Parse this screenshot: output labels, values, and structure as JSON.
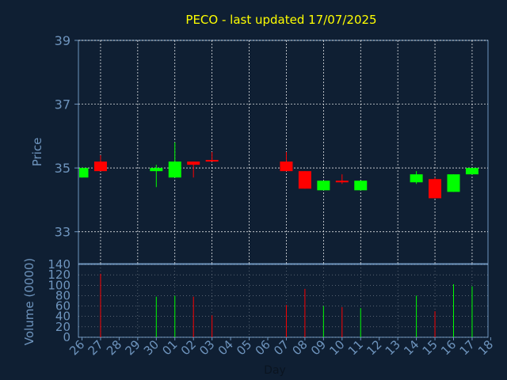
{
  "chart_data": {
    "type": "candlestick",
    "title": "PECO - last updated 17/07/2025",
    "xlabel": "Day",
    "price_panel": {
      "ylabel": "Price",
      "ylim": [
        32,
        39
      ],
      "yticks": [
        "33",
        "35",
        "37",
        "39"
      ],
      "grid": true
    },
    "volume_panel": {
      "ylabel": "Volume (0000)",
      "ylim": [
        0,
        140
      ],
      "yticks": [
        "0",
        "20",
        "40",
        "60",
        "80",
        "100",
        "120",
        "140"
      ]
    },
    "x_ticks": [
      "26",
      "27",
      "28",
      "29",
      "30",
      "01",
      "02",
      "03",
      "04",
      "05",
      "06",
      "07",
      "08",
      "09",
      "10",
      "11",
      "12",
      "13",
      "14",
      "15",
      "16",
      "17",
      "18"
    ],
    "colors": {
      "up": "#00ff00",
      "down": "#ff0000",
      "text": "#6e94bd",
      "title": "#ffff00",
      "grid": "#ffffff",
      "background": "#0f1f33"
    },
    "series": [
      {
        "day": "26",
        "open": 34.7,
        "high": 35.0,
        "low": 34.7,
        "close": 35.0,
        "volume": 0
      },
      {
        "day": "27",
        "open": 35.2,
        "high": 35.4,
        "low": 34.9,
        "close": 34.9,
        "volume": 122
      },
      {
        "day": "30",
        "open": 34.9,
        "high": 35.1,
        "low": 34.4,
        "close": 35.0,
        "volume": 78
      },
      {
        "day": "01",
        "open": 34.7,
        "high": 35.8,
        "low": 34.7,
        "close": 35.2,
        "volume": 80
      },
      {
        "day": "02",
        "open": 35.2,
        "high": 35.2,
        "low": 34.7,
        "close": 35.1,
        "volume": 78
      },
      {
        "day": "03",
        "open": 35.25,
        "high": 35.5,
        "low": 35.2,
        "close": 35.2,
        "volume": 42
      },
      {
        "day": "07",
        "open": 35.2,
        "high": 35.5,
        "low": 34.9,
        "close": 34.9,
        "volume": 62
      },
      {
        "day": "08",
        "open": 34.9,
        "high": 34.9,
        "low": 34.35,
        "close": 34.35,
        "volume": 93
      },
      {
        "day": "09",
        "open": 34.3,
        "high": 34.6,
        "low": 34.3,
        "close": 34.6,
        "volume": 60
      },
      {
        "day": "10",
        "open": 34.6,
        "high": 34.8,
        "low": 34.5,
        "close": 34.55,
        "volume": 58
      },
      {
        "day": "11",
        "open": 34.3,
        "high": 34.6,
        "low": 34.3,
        "close": 34.6,
        "volume": 56
      },
      {
        "day": "14",
        "open": 34.55,
        "high": 34.9,
        "low": 34.5,
        "close": 34.8,
        "volume": 80
      },
      {
        "day": "15",
        "open": 34.65,
        "high": 34.7,
        "low": 34.05,
        "close": 34.05,
        "volume": 50
      },
      {
        "day": "16",
        "open": 34.25,
        "high": 34.8,
        "low": 34.25,
        "close": 34.8,
        "volume": 102
      },
      {
        "day": "17",
        "open": 34.8,
        "high": 35.0,
        "low": 34.8,
        "close": 35.0,
        "volume": 98
      }
    ]
  }
}
